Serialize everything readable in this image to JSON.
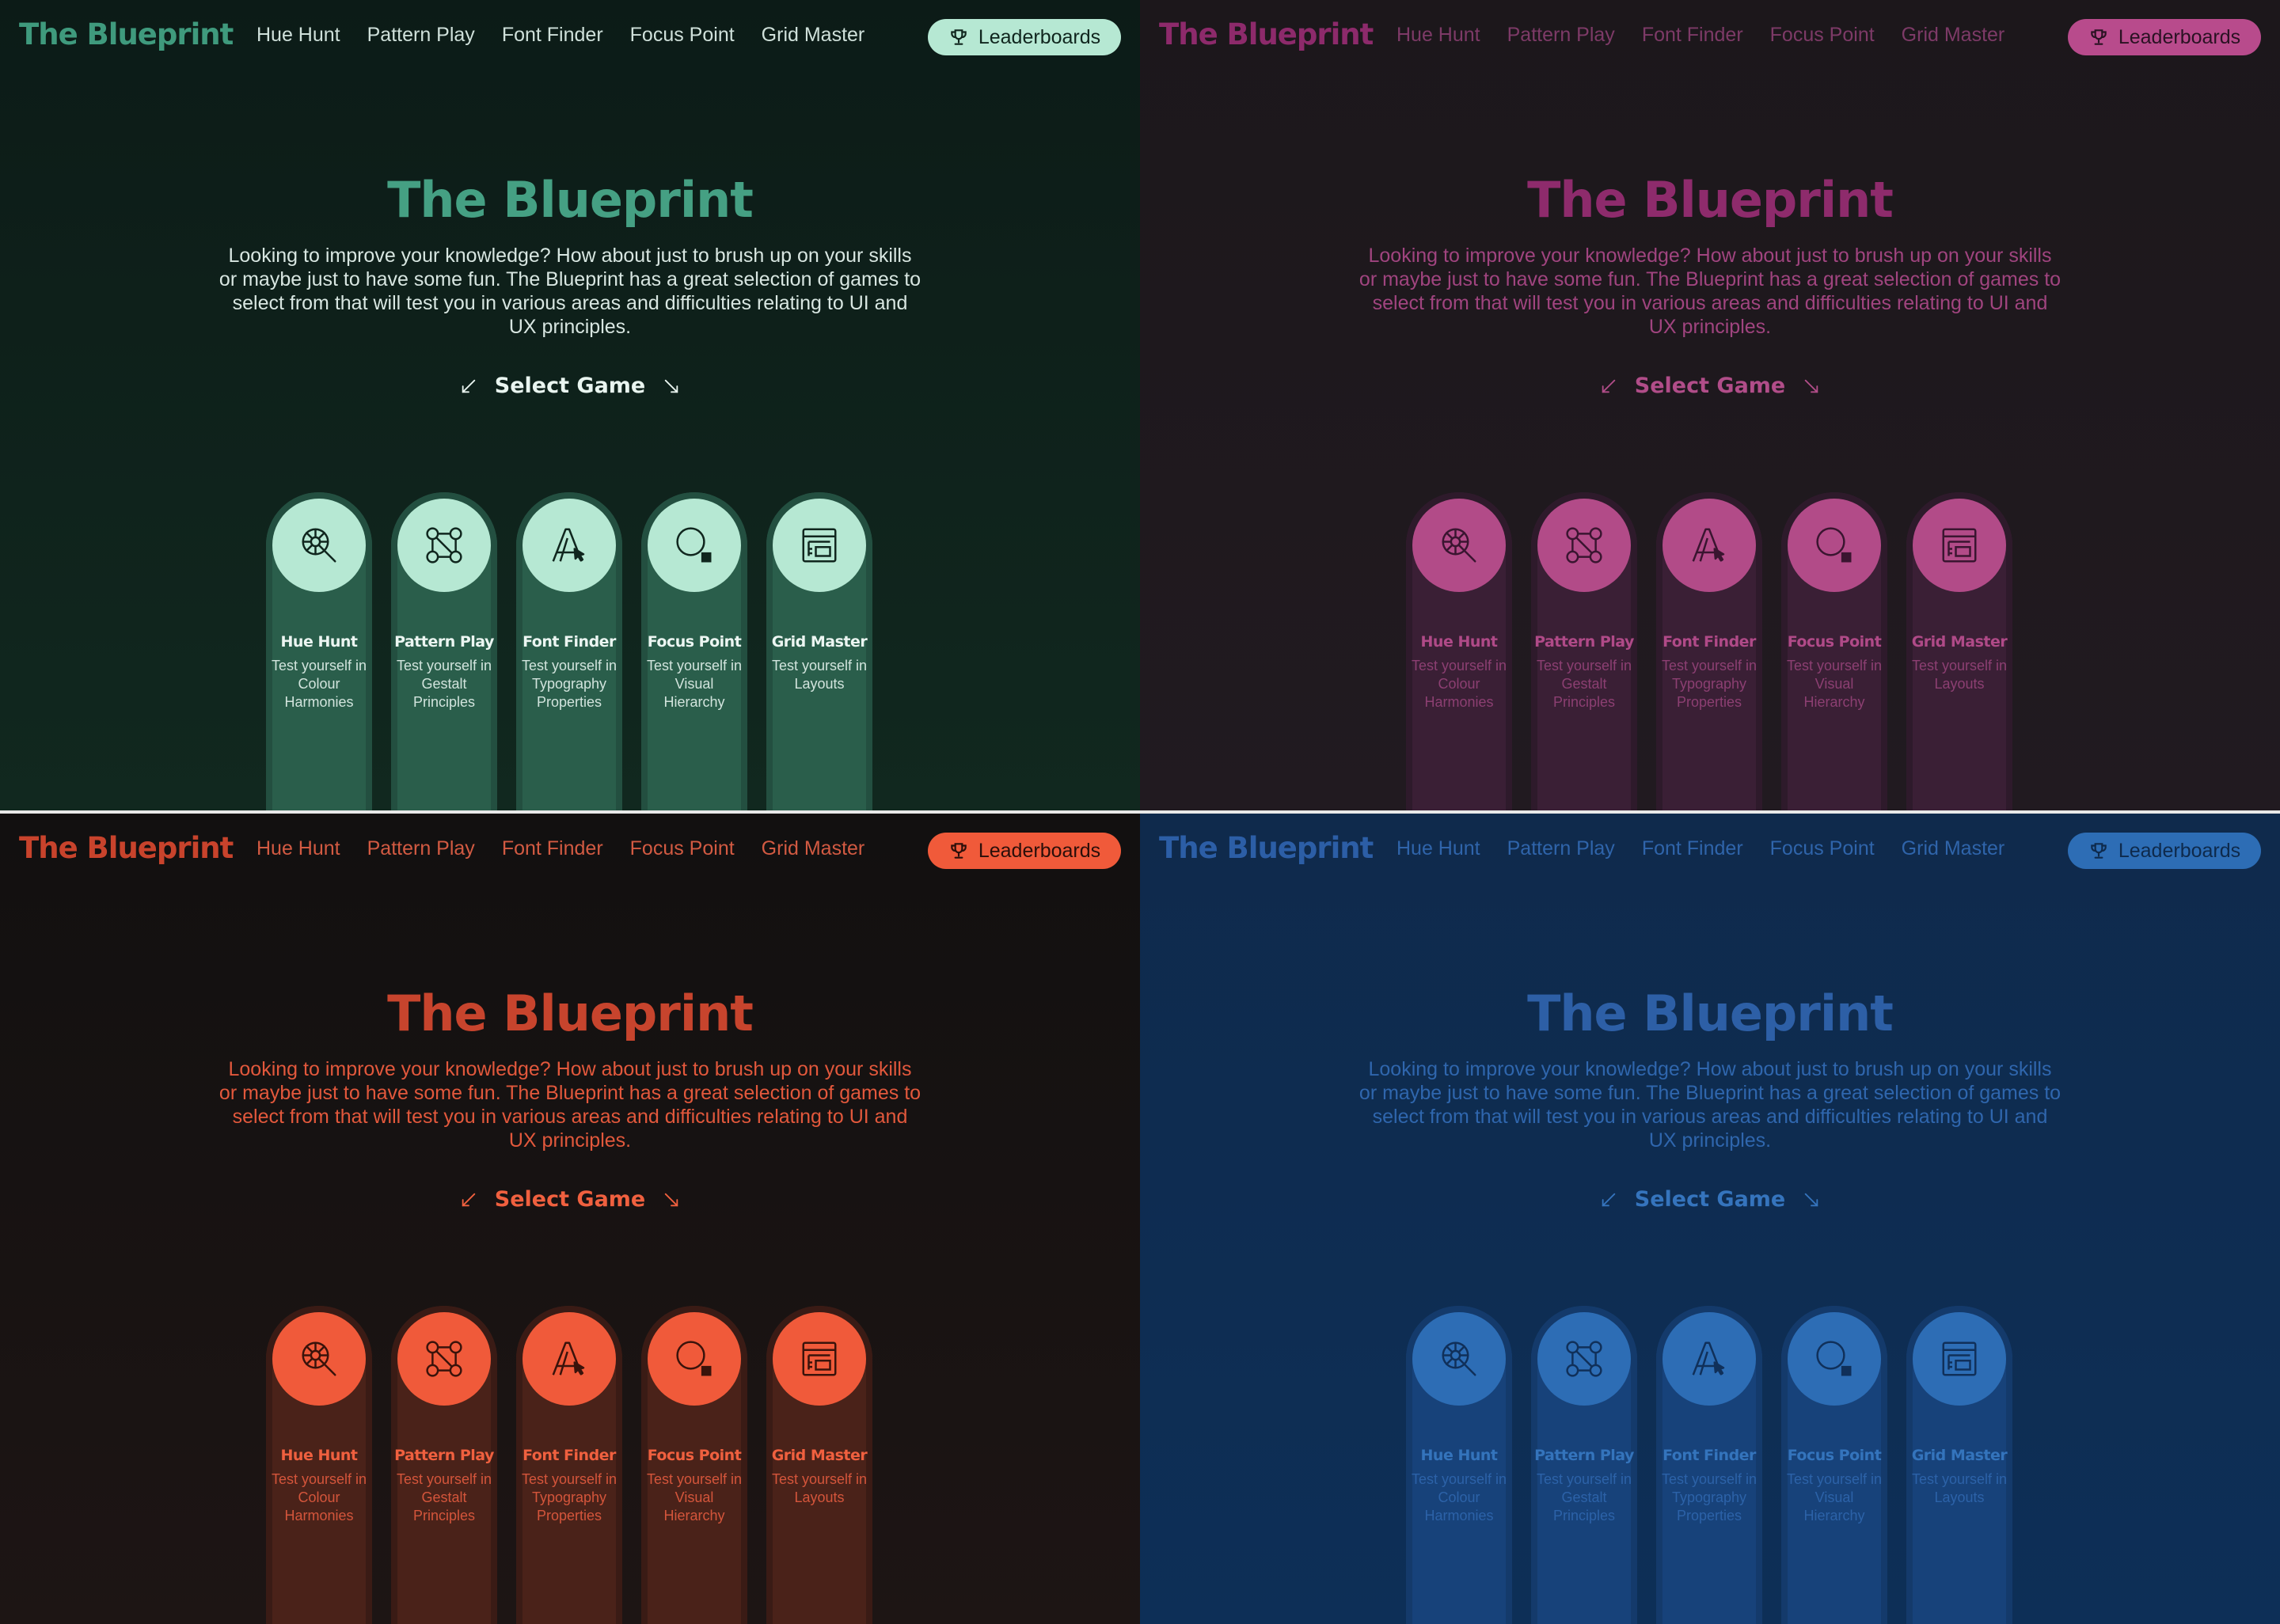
{
  "site": {
    "logo": "The Blueprint",
    "nav": [
      "Hue Hunt",
      "Pattern Play",
      "Font Finder",
      "Focus Point",
      "Grid Master"
    ],
    "leaderboards_label": "Leaderboards",
    "hero_title": "The Blueprint",
    "intro": "Looking to improve your knowledge? How about just to brush up on your skills or maybe just to have some fun. The Blueprint has a great selection of games to select from that will test you in various areas and difficulties relating to UI and UX principles.",
    "select_label": "Select Game",
    "games": [
      {
        "name": "Hue Hunt",
        "desc": "Test yourself in Colour Harmonies",
        "icon": "color-wheel-magnifier-icon"
      },
      {
        "name": "Pattern Play",
        "desc": "Test yourself in Gestalt Principles",
        "icon": "node-network-icon"
      },
      {
        "name": "Font Finder",
        "desc": "Test yourself in Typography Properties",
        "icon": "letter-a-cursor-icon"
      },
      {
        "name": "Focus Point",
        "desc": "Test yourself in Visual Hierarchy",
        "icon": "circle-square-focus-icon"
      },
      {
        "name": "Grid Master",
        "desc": "Test yourself in Layouts",
        "icon": "layout-grid-icon"
      }
    ]
  },
  "themes": [
    {
      "name": "green",
      "bg_top": "#0c1b17",
      "bg_bottom": "#11281f",
      "logo": "#3f9a7d",
      "nav": "#cfe0da",
      "btn_bg": "#b6e8d3",
      "btn_text": "#10261e",
      "title": "#45a083",
      "body": "#d8e6e1",
      "accent": "#e9f5f0",
      "card": "#2a5e4b",
      "ring": "#234f40",
      "circle": "#b6e8d3",
      "icon": "#10261e",
      "cname": "#ecf6f2",
      "cdesc": "#d2e4dd"
    },
    {
      "name": "magenta",
      "bg_top": "#1c171b",
      "bg_bottom": "#211a20",
      "logo": "#8d2a6b",
      "nav": "#7d3a67",
      "btn_bg": "#b84b8c",
      "btn_text": "#2a1223",
      "title": "#8e2b6c",
      "body": "#a0447f",
      "accent": "#b14d89",
      "card": "#3a1f35",
      "ring": "#2e1a2b",
      "circle": "#b24b88",
      "icon": "#3a1530",
      "cname": "#b04a88",
      "cdesc": "#8c3f72"
    },
    {
      "name": "red",
      "bg_top": "#121010",
      "bg_bottom": "#1d1514",
      "logo": "#c8432c",
      "nav": "#d25a42",
      "btn_bg": "#f05a3a",
      "btn_text": "#2a0f0a",
      "title": "#c7442d",
      "body": "#e2583c",
      "accent": "#f0603f",
      "card": "#4a2219",
      "ring": "#3a1b15",
      "circle": "#f05a3a",
      "icon": "#3a130b",
      "cname": "#f0603f",
      "cdesc": "#d4553b"
    },
    {
      "name": "blue",
      "bg_top": "#0f2a4c",
      "bg_bottom": "#0d2f57",
      "logo": "#2c5ea6",
      "nav": "#2f64aa",
      "btn_bg": "#2d6db5",
      "btn_text": "#0e2a4c",
      "title": "#2d5fa6",
      "body": "#2f66ad",
      "accent": "#3574bd",
      "card": "#17427a",
      "ring": "#143a6b",
      "circle": "#2d6db5",
      "icon": "#10305a",
      "cname": "#3474bc",
      "cdesc": "#2c62a8"
    }
  ]
}
